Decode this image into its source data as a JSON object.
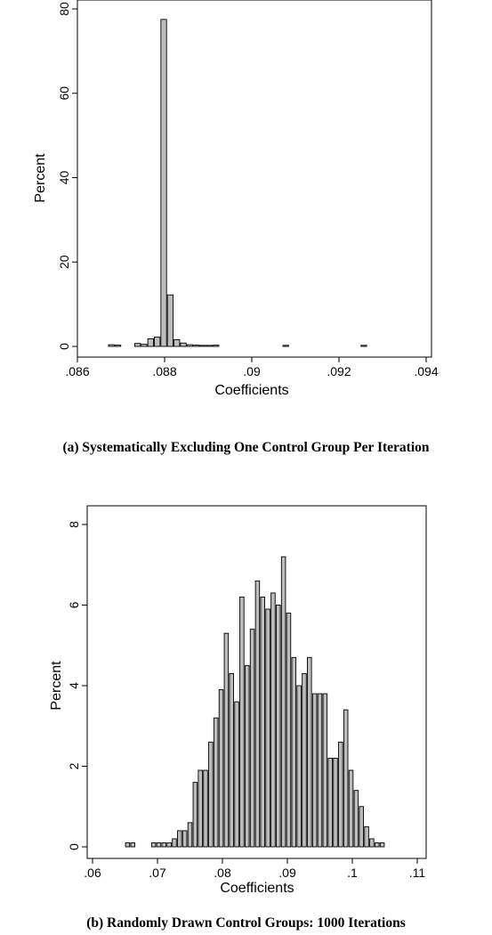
{
  "chart_data": [
    {
      "type": "bar",
      "title": "",
      "xlabel": "Coefficients",
      "ylabel": "Percent",
      "caption": "(a)  Systematically Excluding One Control Group Per Iteration",
      "xlim": [
        0.086,
        0.094
      ],
      "ylim": [
        0,
        80
      ],
      "xticks": [
        ".086",
        ".088",
        ".09",
        ".092",
        ".094"
      ],
      "xtick_values": [
        0.086,
        0.088,
        0.09,
        0.092,
        0.094
      ],
      "yticks": [
        "0",
        "20",
        "40",
        "60",
        "80"
      ],
      "ytick_values": [
        0,
        20,
        40,
        60,
        80
      ],
      "grid": false,
      "bar_width": 0.00013,
      "x": [
        0.08678,
        0.08693,
        0.08738,
        0.08753,
        0.08768,
        0.08783,
        0.08798,
        0.08813,
        0.08828,
        0.08843,
        0.08858,
        0.08873,
        0.08888,
        0.08903,
        0.08918,
        0.09078,
        0.09257
      ],
      "values": [
        0.4,
        0.3,
        0.7,
        0.5,
        1.8,
        2.2,
        77.5,
        12.2,
        1.6,
        0.8,
        0.4,
        0.3,
        0.2,
        0.2,
        0.3,
        0.2,
        0.2
      ]
    },
    {
      "type": "bar",
      "title": "",
      "xlabel": "Coefficients",
      "ylabel": "Percent",
      "caption": "(b) Randomly Drawn Control Groups: 1000 Iterations",
      "xlim": [
        0.06,
        0.11
      ],
      "ylim": [
        0,
        8
      ],
      "xticks": [
        ".06",
        ".07",
        ".08",
        ".09",
        ".1",
        ".11"
      ],
      "xtick_values": [
        0.06,
        0.07,
        0.08,
        0.09,
        0.1,
        0.11
      ],
      "yticks": [
        "0",
        "2",
        "4",
        "6",
        "8"
      ],
      "ytick_values": [
        0,
        2,
        4,
        6,
        8
      ],
      "grid": false,
      "bar_width": 0.00063,
      "x": [
        0.0654,
        0.0662,
        0.0694,
        0.0702,
        0.071,
        0.0718,
        0.0726,
        0.0734,
        0.0742,
        0.075,
        0.0758,
        0.0766,
        0.0774,
        0.0782,
        0.079,
        0.0798,
        0.0806,
        0.0814,
        0.0822,
        0.083,
        0.0838,
        0.0846,
        0.0854,
        0.0862,
        0.087,
        0.0878,
        0.0886,
        0.0894,
        0.0902,
        0.091,
        0.0918,
        0.0926,
        0.0934,
        0.0942,
        0.095,
        0.0958,
        0.0966,
        0.0974,
        0.0982,
        0.099,
        0.0998,
        0.1006,
        0.1014,
        0.1022,
        0.103,
        0.1038,
        0.1046
      ],
      "values": [
        0.1,
        0.1,
        0.1,
        0.1,
        0.1,
        0.1,
        0.2,
        0.4,
        0.4,
        0.6,
        1.6,
        1.9,
        1.9,
        2.6,
        3.2,
        3.9,
        5.3,
        4.3,
        3.6,
        6.2,
        4.5,
        5.4,
        6.6,
        6.2,
        5.9,
        6.3,
        6.0,
        7.2,
        5.8,
        4.7,
        4.0,
        4.3,
        4.7,
        3.8,
        3.8,
        3.8,
        2.2,
        2.2,
        2.6,
        3.4,
        1.9,
        1.4,
        1.0,
        0.5,
        0.2,
        0.1,
        0.1
      ]
    }
  ]
}
